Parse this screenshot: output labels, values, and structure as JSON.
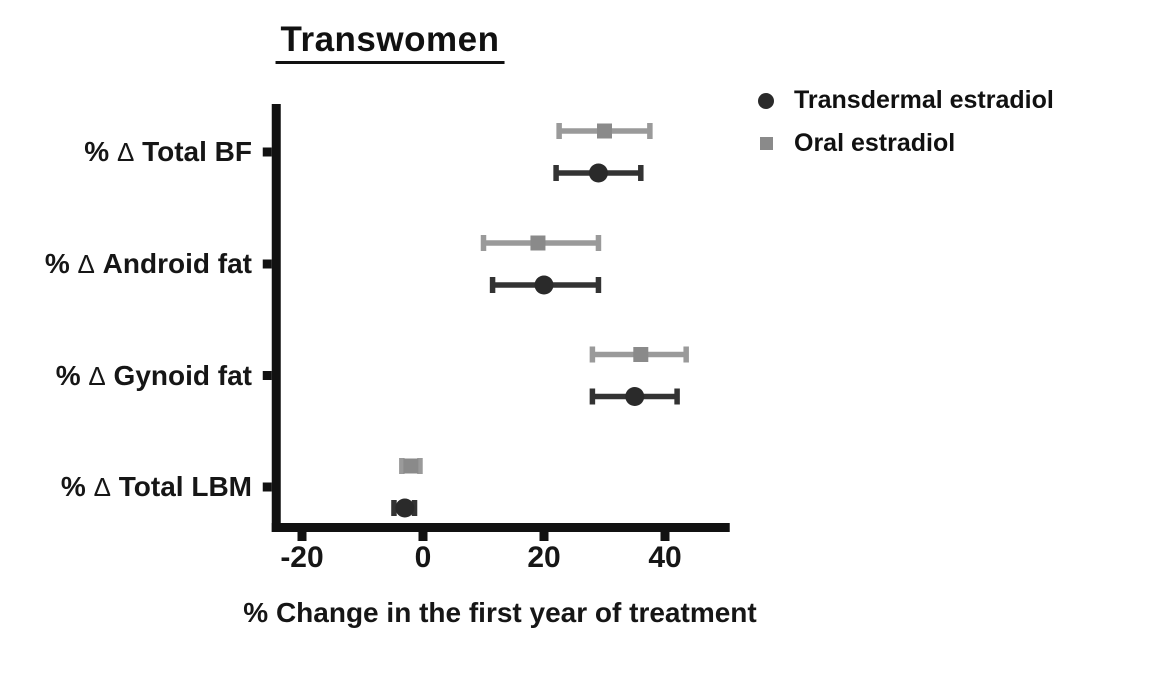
{
  "chart_data": {
    "type": "scatter",
    "subtype": "horizontal-dot-plot-with-error-bars",
    "title": "Transwomen",
    "xlabel": "% Change in the first year of treatment",
    "ylabel": "",
    "categories": [
      "% Δ Total BF",
      "% Δ Android fat",
      "% Δ Gynoid fat",
      "% Δ Total LBM"
    ],
    "xlim": [
      -25,
      50.7
    ],
    "xticks": [
      "-20",
      "0",
      "20",
      "40"
    ],
    "xtick_values": [
      -20,
      0,
      20,
      40
    ],
    "grid": false,
    "legend_position": "top-right",
    "axis_color": "#111111",
    "series": [
      {
        "name": "Transdermal estradiol",
        "marker": "circle",
        "color": "#2a2a2a",
        "line_color": "#333333",
        "values": [
          29,
          20,
          35,
          -3
        ],
        "ci_low": [
          22,
          11.5,
          28,
          -4.8
        ],
        "ci_high": [
          36,
          29,
          42,
          -1.4
        ]
      },
      {
        "name": "Oral estradiol",
        "marker": "square",
        "color": "#8a8a8a",
        "line_color": "#9a9a9a",
        "values": [
          30,
          19,
          36,
          -2
        ],
        "ci_low": [
          22.5,
          10,
          28,
          -3.5
        ],
        "ci_high": [
          37.5,
          29,
          43.5,
          -0.5
        ]
      }
    ]
  }
}
